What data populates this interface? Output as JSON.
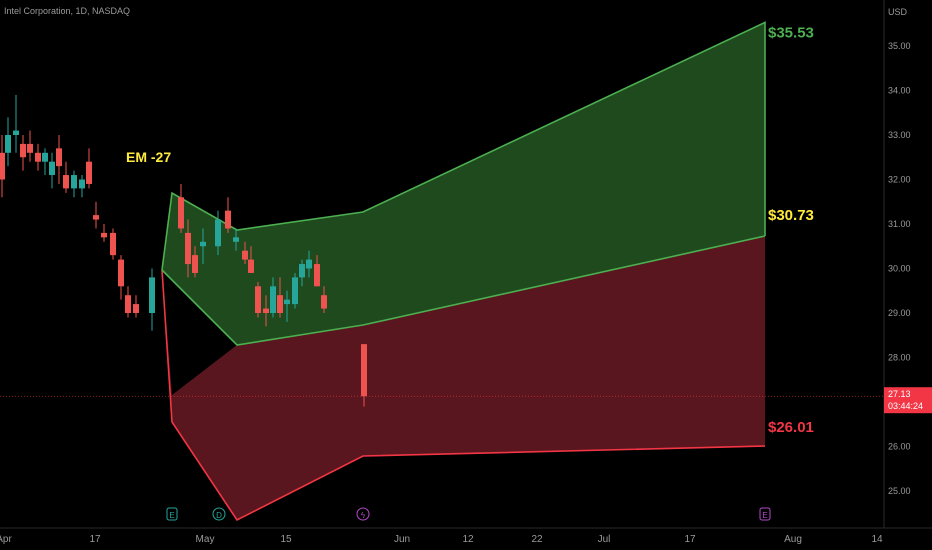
{
  "header": {
    "symbol_line": "Intel Corporation, 1D, NASDAQ"
  },
  "axis": {
    "currency": "USD",
    "y_ticks": [
      "35.00",
      "34.00",
      "33.00",
      "32.00",
      "31.00",
      "30.00",
      "29.00",
      "28.00",
      "27.00",
      "26.00",
      "25.00"
    ],
    "x_ticks": [
      "Apr",
      "17",
      "May",
      "15",
      "Jun",
      "12",
      "22",
      "Jul",
      "17",
      "Aug",
      "14"
    ]
  },
  "price_tag": {
    "price": "27.13",
    "countdown": "03:44:24"
  },
  "annotations": {
    "em_label": "EM -27",
    "upper_target": "$35.53",
    "mid_target": "$30.73",
    "lower_target": "$26.01"
  },
  "event_markers": [
    {
      "glyph": "E",
      "name": "earnings-icon"
    },
    {
      "glyph": "D",
      "name": "dividend-icon"
    },
    {
      "glyph": "ϟ",
      "name": "split-icon"
    },
    {
      "glyph": "E",
      "name": "earnings-icon"
    }
  ],
  "colors": {
    "up": "#26a69a",
    "down": "#ef5350",
    "green_zone": "#1e4a1e",
    "green_line": "#4caf50",
    "red_zone": "#5a161e",
    "red_line": "#f23645",
    "label_yellow": "#ffeb3b",
    "tag_bg": "#f23645"
  },
  "chart_data": {
    "type": "candlestick",
    "title": "Intel Corporation, 1D, NASDAQ",
    "ylabel": "USD",
    "ylim": [
      24.35,
      35.75
    ],
    "candles": [
      {
        "o": 32.6,
        "h": 33.0,
        "l": 31.6,
        "c": 32.0
      },
      {
        "o": 32.6,
        "h": 33.4,
        "l": 32.3,
        "c": 33.0
      },
      {
        "o": 33.0,
        "h": 33.9,
        "l": 32.6,
        "c": 33.1
      },
      {
        "o": 32.8,
        "h": 33.0,
        "l": 32.2,
        "c": 32.5
      },
      {
        "o": 32.8,
        "h": 33.1,
        "l": 32.4,
        "c": 32.6
      },
      {
        "o": 32.6,
        "h": 32.8,
        "l": 32.2,
        "c": 32.4
      },
      {
        "o": 32.4,
        "h": 32.7,
        "l": 32.1,
        "c": 32.6
      },
      {
        "o": 32.1,
        "h": 32.6,
        "l": 31.8,
        "c": 32.4
      },
      {
        "o": 32.7,
        "h": 33.0,
        "l": 31.9,
        "c": 32.3
      },
      {
        "o": 32.1,
        "h": 32.4,
        "l": 31.7,
        "c": 31.8
      },
      {
        "o": 31.8,
        "h": 32.2,
        "l": 31.6,
        "c": 32.1
      },
      {
        "o": 31.8,
        "h": 32.1,
        "l": 31.6,
        "c": 32.0
      },
      {
        "o": 32.4,
        "h": 32.7,
        "l": 31.8,
        "c": 31.9
      },
      {
        "o": 31.2,
        "h": 31.5,
        "l": 30.9,
        "c": 31.1
      },
      {
        "o": 30.8,
        "h": 31.0,
        "l": 30.6,
        "c": 30.7
      },
      {
        "o": 30.8,
        "h": 30.9,
        "l": 30.2,
        "c": 30.3
      },
      {
        "o": 30.2,
        "h": 30.3,
        "l": 29.3,
        "c": 29.6
      },
      {
        "o": 29.4,
        "h": 29.6,
        "l": 28.9,
        "c": 29.0
      },
      {
        "o": 29.2,
        "h": 29.4,
        "l": 28.9,
        "c": 29.0
      },
      {
        "o": 29.0,
        "h": 30.0,
        "l": 28.6,
        "c": 29.8
      },
      {
        "o": 31.6,
        "h": 31.9,
        "l": 30.8,
        "c": 30.9
      },
      {
        "o": 30.8,
        "h": 31.1,
        "l": 29.8,
        "c": 30.1
      },
      {
        "o": 30.3,
        "h": 30.5,
        "l": 29.8,
        "c": 29.9
      },
      {
        "o": 30.5,
        "h": 30.9,
        "l": 30.1,
        "c": 30.6
      },
      {
        "o": 30.5,
        "h": 31.3,
        "l": 30.3,
        "c": 31.1
      },
      {
        "o": 31.3,
        "h": 31.6,
        "l": 30.8,
        "c": 30.9
      },
      {
        "o": 30.6,
        "h": 30.9,
        "l": 30.4,
        "c": 30.7
      },
      {
        "o": 30.4,
        "h": 30.6,
        "l": 30.1,
        "c": 30.2
      },
      {
        "o": 30.2,
        "h": 30.5,
        "l": 29.9,
        "c": 29.9
      },
      {
        "o": 29.6,
        "h": 29.7,
        "l": 28.9,
        "c": 29.0
      },
      {
        "o": 29.1,
        "h": 29.4,
        "l": 28.7,
        "c": 29.0
      },
      {
        "o": 29.0,
        "h": 29.8,
        "l": 28.9,
        "c": 29.6
      },
      {
        "o": 29.4,
        "h": 29.8,
        "l": 28.9,
        "c": 29.0
      },
      {
        "o": 29.2,
        "h": 29.5,
        "l": 28.8,
        "c": 29.3
      },
      {
        "o": 29.2,
        "h": 29.9,
        "l": 29.1,
        "c": 29.8
      },
      {
        "o": 29.8,
        "h": 30.2,
        "l": 29.6,
        "c": 30.1
      },
      {
        "o": 30.0,
        "h": 30.4,
        "l": 29.8,
        "c": 30.2
      },
      {
        "o": 30.1,
        "h": 30.3,
        "l": 29.6,
        "c": 29.6
      },
      {
        "o": 29.4,
        "h": 29.6,
        "l": 29.0,
        "c": 29.1
      },
      {
        "o": 28.3,
        "h": 28.3,
        "l": 26.9,
        "c": 27.13
      }
    ],
    "projection": {
      "upper_line": [
        35.53
      ],
      "mid_value": 30.73,
      "lower_value": 26.01
    }
  }
}
